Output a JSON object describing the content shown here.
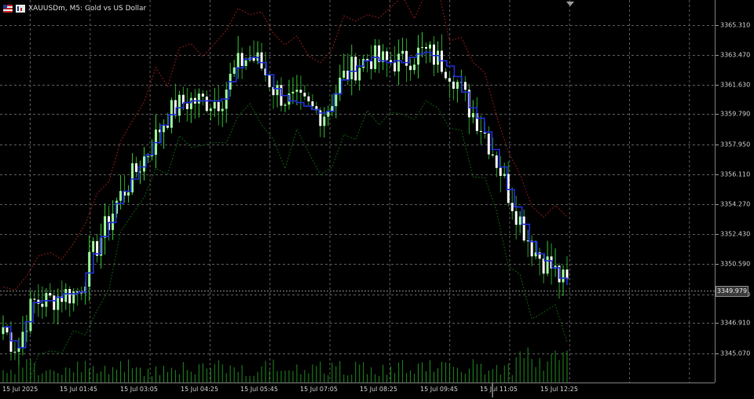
{
  "window": {
    "symbol_title": "XAUUSDm, M5:  Gold vs US Dollar",
    "current_price": "3349.979"
  },
  "price_axis": {
    "labels": [
      "3365.310",
      "3363.470",
      "3361.630",
      "3359.790",
      "3357.950",
      "3356.110",
      "3354.270",
      "3352.430",
      "3350.590",
      "3348.910",
      "3346.910",
      "3345.070"
    ]
  },
  "time_axis": {
    "labels": [
      "15 Jul 2025",
      "15 Jul 01:45",
      "15 Jul 03:05",
      "15 Jul 04:25",
      "15 Jul 05:45",
      "15 Jul 07:05",
      "15 Jul 08:25",
      "15 Jul 09:45",
      "15 Jul 11:05",
      "15 Jul 12:25"
    ]
  },
  "colors": {
    "bull": "#9bff9b",
    "bull_wick": "#34c534",
    "bear": "#ffffff",
    "grid": "#5a5a5a",
    "indicator_mid": "#1f2fd6",
    "indicator_upper": "#8b1a1a",
    "indicator_lower": "#0f5a0f",
    "volume": "#1f8a1f"
  },
  "chart_data": {
    "type": "candlestick",
    "series_mid": [
      3347.4,
      3346.6,
      3346.2,
      3347.7,
      3348.8,
      3348.9,
      3348.9,
      3349.1,
      3349.3,
      3349.3,
      3349.4,
      3350.5,
      3351.6,
      3352.6,
      3353.4,
      3354.5,
      3355.2,
      3355.9,
      3356.6,
      3357.3,
      3358.0,
      3359.0,
      3359.6,
      3360.0,
      3360.3,
      3360.4,
      3360.4,
      3360.4,
      3360.4,
      3360.5,
      3361.5,
      3362.3,
      3362.8,
      3362.9,
      3362.6,
      3361.9,
      3361.1,
      3360.7,
      3360.4,
      3360.3,
      3360.1,
      3359.9,
      3359.7,
      3359.8,
      3360.8,
      3361.6,
      3362.1,
      3362.4,
      3362.7,
      3362.9,
      3362.7,
      3362.6,
      3362.7,
      3362.6,
      3362.9,
      3363.1,
      3363.2,
      3363.0,
      3362.7,
      3362.4,
      3361.8,
      3360.9,
      3360.0,
      3359.4,
      3358.6,
      3357.6,
      3356.6,
      3355.3,
      3354.3,
      3353.3,
      3352.3,
      3351.6,
      3351.2,
      3350.8,
      3350.2,
      3349.8
    ],
    "ylim": [
      3344.2,
      3366.2
    ]
  }
}
